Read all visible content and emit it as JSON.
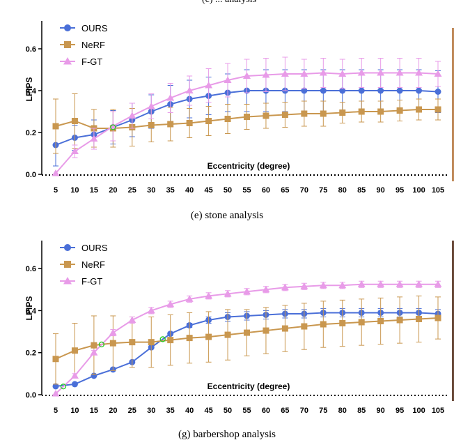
{
  "header_fragment": "(c) ... analysis",
  "chart_data": [
    {
      "type": "line",
      "caption": "(e) stone analysis",
      "xlabel": "Eccentricity (degree)",
      "ylabel": "LPIPS",
      "x": [
        5,
        10,
        15,
        20,
        25,
        30,
        35,
        40,
        45,
        50,
        55,
        60,
        65,
        70,
        75,
        80,
        85,
        90,
        95,
        100,
        105
      ],
      "ylim": [
        0,
        0.7
      ],
      "yticks": [
        "0.0",
        "0.2",
        "0.4",
        "0.6"
      ],
      "legend_position": "top-left",
      "series": [
        {
          "name": "OURS",
          "color": "#4a6fd8",
          "marker": "circle",
          "values": [
            0.14,
            0.175,
            0.19,
            0.225,
            0.26,
            0.3,
            0.335,
            0.36,
            0.375,
            0.39,
            0.4,
            0.4,
            0.4,
            0.4,
            0.4,
            0.4,
            0.4,
            0.4,
            0.4,
            0.4,
            0.395
          ],
          "errors": [
            0.1,
            0.06,
            0.07,
            0.08,
            0.08,
            0.08,
            0.09,
            0.09,
            0.09,
            0.09,
            0.1,
            0.1,
            0.1,
            0.1,
            0.1,
            0.1,
            0.1,
            0.1,
            0.1,
            0.1,
            0.1
          ]
        },
        {
          "name": "NeRF",
          "color": "#c9974f",
          "marker": "square",
          "values": [
            0.23,
            0.255,
            0.22,
            0.22,
            0.225,
            0.235,
            0.24,
            0.245,
            0.255,
            0.265,
            0.275,
            0.28,
            0.285,
            0.29,
            0.29,
            0.295,
            0.3,
            0.3,
            0.305,
            0.31,
            0.31
          ],
          "errors": [
            0.13,
            0.13,
            0.09,
            0.09,
            0.09,
            0.08,
            0.08,
            0.07,
            0.07,
            0.07,
            0.06,
            0.06,
            0.06,
            0.06,
            0.06,
            0.05,
            0.05,
            0.05,
            0.05,
            0.05,
            0.05
          ]
        },
        {
          "name": "F-GT",
          "color": "#e89be8",
          "marker": "triangle",
          "values": [
            0.005,
            0.11,
            0.17,
            0.23,
            0.28,
            0.325,
            0.365,
            0.4,
            0.425,
            0.45,
            0.47,
            0.475,
            0.48,
            0.48,
            0.485,
            0.48,
            0.485,
            0.485,
            0.485,
            0.485,
            0.48
          ],
          "errors": [
            0.0,
            0.03,
            0.05,
            0.07,
            0.06,
            0.06,
            0.07,
            0.07,
            0.08,
            0.08,
            0.08,
            0.08,
            0.08,
            0.07,
            0.07,
            0.07,
            0.07,
            0.07,
            0.07,
            0.07,
            0.06
          ]
        }
      ],
      "crossovers": [
        20
      ]
    },
    {
      "type": "line",
      "caption": "(g) barbershop analysis",
      "xlabel": "Eccentricity (degree)",
      "ylabel": "LPIPS",
      "x": [
        5,
        10,
        15,
        20,
        25,
        30,
        35,
        40,
        45,
        50,
        55,
        60,
        65,
        70,
        75,
        80,
        85,
        90,
        95,
        100,
        105
      ],
      "ylim": [
        0,
        0.7
      ],
      "yticks": [
        "0.0",
        "0.2",
        "0.4",
        "0.6"
      ],
      "legend_position": "top-left",
      "series": [
        {
          "name": "OURS",
          "color": "#4a6fd8",
          "marker": "circle",
          "values": [
            0.04,
            0.05,
            0.09,
            0.12,
            0.155,
            0.225,
            0.29,
            0.33,
            0.355,
            0.37,
            0.375,
            0.38,
            0.385,
            0.385,
            0.39,
            0.39,
            0.39,
            0.39,
            0.39,
            0.39,
            0.385
          ],
          "errors": [
            0.0,
            0.0,
            0.0,
            0.0,
            0.0,
            0.0,
            0.0,
            0.01,
            0.015,
            0.02,
            0.02,
            0.02,
            0.02,
            0.02,
            0.02,
            0.02,
            0.02,
            0.02,
            0.02,
            0.02,
            0.02
          ]
        },
        {
          "name": "NeRF",
          "color": "#c9974f",
          "marker": "square",
          "values": [
            0.17,
            0.21,
            0.235,
            0.245,
            0.25,
            0.25,
            0.26,
            0.27,
            0.275,
            0.285,
            0.295,
            0.305,
            0.315,
            0.325,
            0.335,
            0.34,
            0.345,
            0.35,
            0.355,
            0.36,
            0.365
          ],
          "errors": [
            0.12,
            0.13,
            0.14,
            0.13,
            0.12,
            0.12,
            0.12,
            0.12,
            0.12,
            0.12,
            0.11,
            0.11,
            0.11,
            0.11,
            0.11,
            0.11,
            0.11,
            0.11,
            0.11,
            0.11,
            0.1
          ]
        },
        {
          "name": "F-GT",
          "color": "#e89be8",
          "marker": "triangle",
          "values": [
            0.005,
            0.09,
            0.2,
            0.295,
            0.355,
            0.4,
            0.43,
            0.455,
            0.47,
            0.48,
            0.49,
            0.5,
            0.51,
            0.515,
            0.52,
            0.52,
            0.525,
            0.525,
            0.525,
            0.525,
            0.525
          ],
          "errors": [
            0.0,
            0.01,
            0.01,
            0.015,
            0.015,
            0.015,
            0.015,
            0.015,
            0.015,
            0.015,
            0.015,
            0.015,
            0.015,
            0.015,
            0.015,
            0.015,
            0.015,
            0.015,
            0.015,
            0.015,
            0.015
          ]
        }
      ],
      "crossovers": [
        7,
        17,
        33
      ]
    }
  ]
}
